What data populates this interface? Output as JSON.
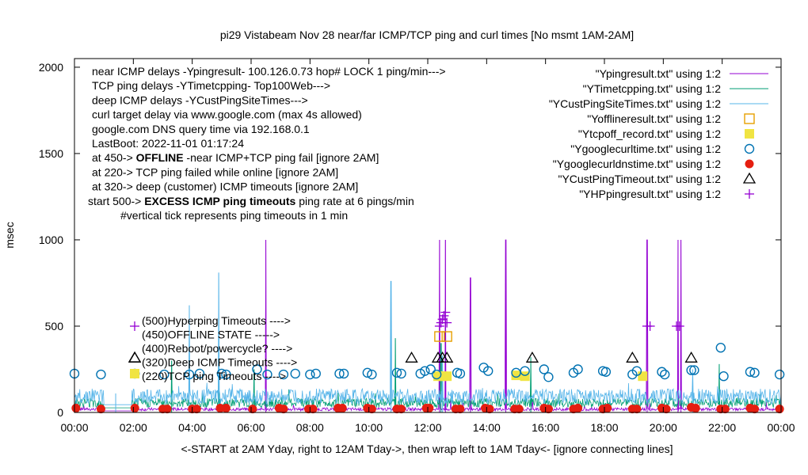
{
  "chart_data": {
    "type": "line",
    "title": "pi29 Vistabeam Nov 28  near/far ICMP/TCP ping and curl times [No msmt 1AM-2AM]",
    "xlabel": "<-START at 2AM Yday, right to 12AM Tday->, then wrap left to 1AM Tday<- [ignore connecting lines]",
    "ylabel": "msec",
    "xlim": [
      0,
      24
    ],
    "ylim": [
      0,
      2050
    ],
    "grid": false,
    "legend_position": "top-right",
    "x_ticks": [
      "00:00",
      "02:00",
      "04:00",
      "06:00",
      "08:00",
      "10:00",
      "12:00",
      "14:00",
      "16:00",
      "18:00",
      "20:00",
      "22:00",
      "00:00"
    ],
    "y_ticks": [
      "0",
      "500",
      "1000",
      "1500",
      "2000"
    ],
    "notes_left": [
      {
        "text": "near ICMP delays -Ypingresult- 100.126.0.73 hop# LOCK 1 ping/min--->"
      },
      {
        "text": "TCP ping delays -YTimetcpping- Top100Web--->"
      },
      {
        "text": "deep ICMP delays -YCustPingSiteTimes--->"
      },
      {
        "text": "curl target delay via www.google.com (max 4s allowed)"
      },
      {
        "text": "google.com DNS query time via 192.168.0.1"
      },
      {
        "text": "LastBoot: 2022-11-01 01:17:24"
      },
      {
        "text": "at 450-> ",
        "bold": "OFFLINE",
        "rest": " -near ICMP+TCP ping fail [ignore 2AM]"
      },
      {
        "text": "at 220-> TCP ping failed while online [ignore 2AM]"
      },
      {
        "text": "at 320-> deep (customer) ICMP timeouts [ignore 2AM]"
      },
      {
        "text": "start 500-> ",
        "bold": "EXCESS ICMP ping timeouts",
        "rest": "  ping rate at 6 pings/min"
      },
      {
        "text": "#vertical tick represents ping timeouts in 1 min"
      }
    ],
    "marker_key": [
      {
        "label": "(500)Hyperping Timeouts ---->",
        "y": 500
      },
      {
        "label": "(450)OFFLINE STATE ----->",
        "y": 450
      },
      {
        "label": "(400)Reboot/powercycle? ---->",
        "y": 400
      },
      {
        "label": "(320)Deep ICMP Timeouts ---->",
        "y": 320
      },
      {
        "label": "(220)TCP ping Timeouts ---->",
        "y": 220
      }
    ],
    "series": [
      {
        "name": "\"Ypingresult.txt\" using 1:2",
        "color": "#9400d3",
        "style": "line",
        "spikes": [
          [
            6.5,
            1000
          ],
          [
            12.4,
            1000
          ],
          [
            12.6,
            1000
          ],
          [
            13.45,
            780
          ],
          [
            14.65,
            1000
          ],
          [
            19.45,
            1000
          ],
          [
            20.5,
            1000
          ],
          [
            20.6,
            1000
          ]
        ],
        "base": 15
      },
      {
        "name": "\"YTimetcpping.txt\" using 1:2",
        "color": "#009e73",
        "style": "line",
        "spikes": [
          [
            3.3,
            300
          ],
          [
            4.9,
            270
          ],
          [
            6.1,
            250
          ],
          [
            10.9,
            430
          ],
          [
            12.45,
            400
          ],
          [
            15.5,
            320
          ],
          [
            21.9,
            280
          ]
        ],
        "base": 45
      },
      {
        "name": "\"YCustPingSiteTimes.txt\" using 1:2",
        "color": "#56b4e9",
        "style": "line",
        "spikes": [
          [
            1.4,
            110
          ],
          [
            3.9,
            620
          ],
          [
            4.9,
            810
          ],
          [
            10.75,
            760
          ],
          [
            12.5,
            330
          ],
          [
            21.0,
            250
          ]
        ],
        "base": 75
      },
      {
        "name": "\"Yofflineresult.txt\" using 1:2",
        "color": "#e69f00",
        "style": "open-square",
        "points": [
          [
            12.4,
            440
          ],
          [
            12.65,
            440
          ]
        ]
      },
      {
        "name": "\"Ytcpoff_record.txt\" using 1:2",
        "color": "#f0e442",
        "style": "filled-square",
        "points": [
          [
            12.35,
            210
          ],
          [
            12.5,
            210
          ],
          [
            12.65,
            210
          ],
          [
            15.0,
            215
          ],
          [
            15.3,
            210
          ],
          [
            19.3,
            210
          ]
        ]
      },
      {
        "name": "\"Ygooglecurltime.txt\" using 1:2",
        "color": "#0072b2",
        "style": "open-circle",
        "points": [
          [
            0.0,
            225
          ],
          [
            0.9,
            220
          ],
          [
            2.05,
            225
          ],
          [
            3.05,
            220
          ],
          [
            3.9,
            220
          ],
          [
            4.25,
            225
          ],
          [
            5.0,
            225
          ],
          [
            5.15,
            220
          ],
          [
            6.2,
            250
          ],
          [
            6.55,
            220
          ],
          [
            7.1,
            220
          ],
          [
            7.5,
            225
          ],
          [
            8.0,
            220
          ],
          [
            8.2,
            225
          ],
          [
            9.0,
            225
          ],
          [
            9.15,
            225
          ],
          [
            9.95,
            230
          ],
          [
            10.1,
            220
          ],
          [
            10.95,
            230
          ],
          [
            11.1,
            225
          ],
          [
            11.75,
            225
          ],
          [
            11.9,
            240
          ],
          [
            12.1,
            250
          ],
          [
            12.3,
            220
          ],
          [
            13.0,
            230
          ],
          [
            13.1,
            225
          ],
          [
            13.9,
            260
          ],
          [
            14.05,
            240
          ],
          [
            15.0,
            230
          ],
          [
            15.3,
            240
          ],
          [
            15.95,
            250
          ],
          [
            16.1,
            205
          ],
          [
            16.95,
            230
          ],
          [
            17.1,
            250
          ],
          [
            17.95,
            240
          ],
          [
            18.05,
            235
          ],
          [
            18.95,
            220
          ],
          [
            19.1,
            240
          ],
          [
            19.95,
            235
          ],
          [
            20.05,
            220
          ],
          [
            20.95,
            245
          ],
          [
            21.05,
            245
          ],
          [
            21.95,
            375
          ],
          [
            22.05,
            210
          ],
          [
            22.95,
            235
          ],
          [
            23.1,
            230
          ],
          [
            23.95,
            220
          ]
        ]
      },
      {
        "name": "\"Ygooglecurldnstime.txt\" using 1:2",
        "color": "#e51e10",
        "style": "filled-circle",
        "points": [
          [
            0.05,
            25
          ],
          [
            0.9,
            20
          ],
          [
            2.05,
            25
          ],
          [
            3.0,
            20
          ],
          [
            3.15,
            20
          ],
          [
            4.0,
            20
          ],
          [
            4.15,
            20
          ],
          [
            4.95,
            25
          ],
          [
            5.15,
            25
          ],
          [
            6.05,
            20
          ],
          [
            6.95,
            25
          ],
          [
            7.1,
            20
          ],
          [
            7.95,
            20
          ],
          [
            8.1,
            20
          ],
          [
            8.95,
            25
          ],
          [
            9.1,
            25
          ],
          [
            9.95,
            25
          ],
          [
            10.1,
            20
          ],
          [
            10.95,
            20
          ],
          [
            11.1,
            20
          ],
          [
            11.95,
            25
          ],
          [
            12.05,
            25
          ],
          [
            12.95,
            20
          ],
          [
            13.1,
            20
          ],
          [
            13.95,
            25
          ],
          [
            14.1,
            20
          ],
          [
            14.95,
            20
          ],
          [
            15.1,
            20
          ],
          [
            15.95,
            25
          ],
          [
            16.1,
            20
          ],
          [
            16.95,
            20
          ],
          [
            17.1,
            25
          ],
          [
            17.95,
            20
          ],
          [
            18.1,
            25
          ],
          [
            18.95,
            20
          ],
          [
            19.1,
            20
          ],
          [
            19.95,
            25
          ],
          [
            20.1,
            20
          ],
          [
            20.95,
            30
          ],
          [
            21.1,
            25
          ],
          [
            21.95,
            20
          ],
          [
            22.1,
            20
          ],
          [
            22.95,
            25
          ],
          [
            23.1,
            20
          ],
          [
            23.95,
            20
          ]
        ]
      },
      {
        "name": "\"YCustPingTimeout.txt\" using 1:2",
        "color": "#000000",
        "style": "open-triangle",
        "points": [
          [
            2.05,
            315
          ],
          [
            11.45,
            315
          ],
          [
            12.35,
            315
          ],
          [
            12.5,
            315
          ],
          [
            12.65,
            315
          ],
          [
            15.55,
            315
          ],
          [
            18.95,
            315
          ],
          [
            20.95,
            315
          ]
        ]
      },
      {
        "name": "\"YHPpingresult.txt\" using 1:2",
        "color": "#9400d3",
        "style": "plus",
        "points": [
          [
            12.4,
            500
          ],
          [
            12.45,
            520
          ],
          [
            12.5,
            540
          ],
          [
            12.55,
            560
          ],
          [
            12.6,
            580
          ],
          [
            12.65,
            520
          ],
          [
            19.45,
            500
          ],
          [
            19.55,
            500
          ],
          [
            20.45,
            500
          ],
          [
            20.55,
            500
          ]
        ]
      }
    ]
  }
}
